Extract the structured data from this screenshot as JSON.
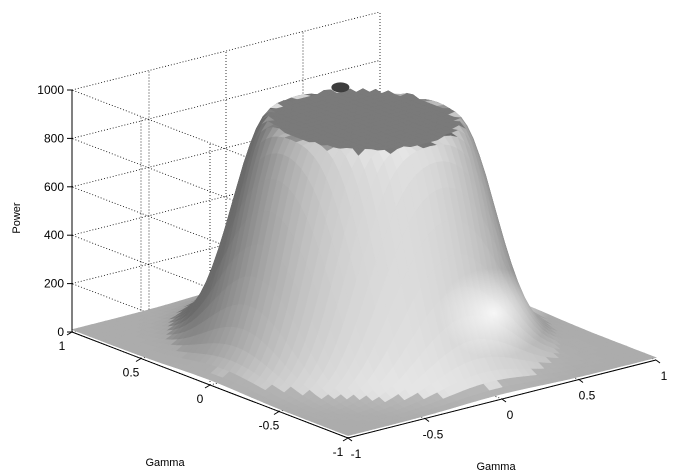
{
  "chart_data": {
    "type": "surface",
    "description_shape": "volcano-shaped power surface over a 2D Gamma grid, flat plateau near 930 in the center",
    "xlabel": "Gamma",
    "ylabel": "Gamma",
    "zlabel": "Power",
    "xlim": [
      -1,
      1
    ],
    "ylim": [
      -1,
      1
    ],
    "zlim": [
      0,
      1000
    ],
    "x_ticks": [
      "-1",
      "-0.5",
      "0",
      "0.5",
      "1"
    ],
    "y_ticks": [
      "-1",
      "-0.5",
      "0",
      "0.5",
      "1"
    ],
    "z_ticks": [
      "0",
      "200",
      "400",
      "600",
      "800",
      "1000"
    ],
    "grid": true,
    "plateau_value": 930,
    "plateau_radius": 0.45,
    "falloff_width": 0.28,
    "surface_color": "#9a9a9a",
    "highlight_color": "#f4f4f4",
    "shadow_color": "#4a4a4a"
  }
}
